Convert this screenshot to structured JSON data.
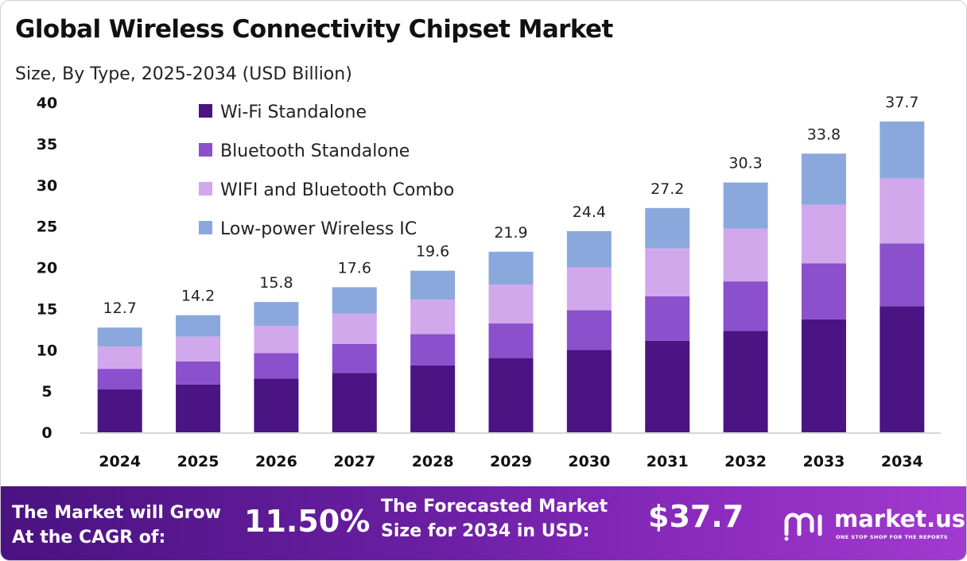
{
  "title": "Global Wireless Connectivity Chipset Market",
  "subtitle": "Size, By Type, 2025-2034 (USD Billion)",
  "colors": {
    "wifi": "#4a1483",
    "bluetooth": "#8b50cc",
    "combo": "#d2a8ec",
    "lowpower": "#8ba8dd",
    "footer_start": "#4a1280",
    "footer_end": "#a23ad0"
  },
  "chart_data": {
    "type": "bar",
    "stacked": true,
    "categories": [
      "2024",
      "2025",
      "2026",
      "2027",
      "2028",
      "2029",
      "2030",
      "2031",
      "2032",
      "2033",
      "2034"
    ],
    "series": [
      {
        "name": "Wi-Fi Standalone",
        "color": "#4a1483",
        "values": [
          5.2,
          5.8,
          6.5,
          7.2,
          8.1,
          9.0,
          10.0,
          11.1,
          12.3,
          13.7,
          15.3
        ]
      },
      {
        "name": "Bluetooth Standalone",
        "color": "#8b50cc",
        "values": [
          2.5,
          2.8,
          3.1,
          3.5,
          3.8,
          4.2,
          4.8,
          5.4,
          6.0,
          6.8,
          7.6
        ]
      },
      {
        "name": "WIFI and Bluetooth Combo",
        "color": "#d2a8ec",
        "values": [
          2.7,
          3.0,
          3.3,
          3.7,
          4.2,
          4.7,
          5.2,
          5.8,
          6.4,
          7.1,
          7.9
        ]
      },
      {
        "name": "Low-power Wireless IC",
        "color": "#8ba8dd",
        "values": [
          2.3,
          2.6,
          2.9,
          3.2,
          3.5,
          4.0,
          4.4,
          4.9,
          5.6,
          6.2,
          6.9
        ]
      }
    ],
    "totals": [
      "12.7",
      "14.2",
      "15.8",
      "17.6",
      "19.6",
      "21.9",
      "24.4",
      "27.2",
      "30.3",
      "33.8",
      "37.7"
    ],
    "ylim": [
      0,
      40
    ],
    "yticks": [
      "0",
      "5",
      "10",
      "15",
      "20",
      "25",
      "30",
      "35",
      "40"
    ],
    "xlabel": "",
    "ylabel": "",
    "grid": false,
    "legend_position": "top-left"
  },
  "footer": {
    "cagr_label_line1": "The Market will Grow",
    "cagr_label_line2": "At the CAGR of:",
    "cagr_value": "11.50%",
    "forecast_label_line1": "The Forecasted Market",
    "forecast_label_line2": "Size for 2034 in USD:",
    "forecast_value": "$37.7",
    "brand_name": "market.us",
    "brand_tagline": "ONE STOP SHOP FOR THE REPORTS",
    "brand_icon": "market-us-logo-icon"
  }
}
